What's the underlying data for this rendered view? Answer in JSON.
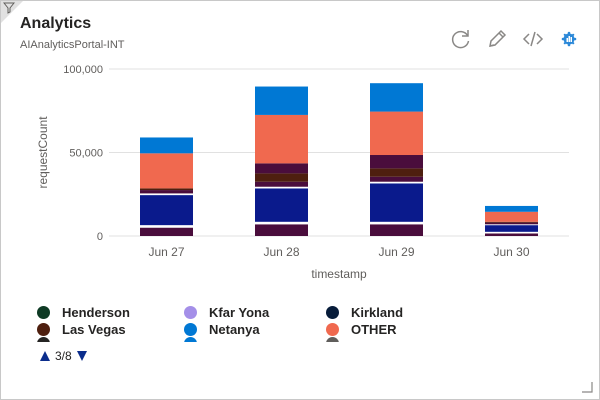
{
  "tile": {
    "title": "Analytics",
    "subtitle": "AIAnalyticsPortal-INT"
  },
  "toolbar": {
    "icons": [
      "refresh-icon",
      "edit-icon",
      "code-icon",
      "analytics-app-icon"
    ]
  },
  "chart_data": {
    "type": "bar",
    "stacked": true,
    "categories": [
      "Jun 27",
      "Jun 28",
      "Jun 29",
      "Jun 30"
    ],
    "xlabel": "timestamp",
    "ylabel": "requestCount",
    "ylim": [
      0,
      100000
    ],
    "yticks": [
      0,
      50000,
      100000
    ],
    "ytick_labels": [
      "0",
      "50,000",
      "100,000"
    ],
    "grid": true,
    "series": [
      {
        "color": "#4a0d3c",
        "values": [
          5000,
          7000,
          7000,
          1500
        ]
      },
      {
        "color": "#ffffff",
        "values": [
          1500,
          1500,
          1500,
          1000
        ]
      },
      {
        "color": "#0a1a8c",
        "values": [
          18000,
          20000,
          23000,
          4000
        ]
      },
      {
        "color": "#ffffff",
        "values": [
          1000,
          1000,
          1000,
          500
        ]
      },
      {
        "color": "#4a0d3c",
        "values": [
          2000,
          3000,
          3000,
          1000
        ]
      },
      {
        "color": "#4e1f0f",
        "values": [
          1000,
          5000,
          5000,
          500
        ]
      },
      {
        "color": "#4a0d3c",
        "values": [
          0,
          6000,
          8000,
          0
        ]
      },
      {
        "color": "#f0694f",
        "values": [
          21000,
          29000,
          26000,
          6000
        ]
      },
      {
        "color": "#0078d4",
        "values": [
          9500,
          17000,
          17000,
          3500
        ]
      }
    ]
  },
  "legend": {
    "items": [
      {
        "label": "Henderson",
        "color": "#0e3a24"
      },
      {
        "label": "Kfar Yona",
        "color": "#a48fe8"
      },
      {
        "label": "Kirkland",
        "color": "#071c3a"
      },
      {
        "label": "Las Vegas",
        "color": "#4e1f0f"
      },
      {
        "label": "Netanya",
        "color": "#0078d4"
      },
      {
        "label": "OTHER",
        "color": "#f0694f"
      }
    ],
    "clipped_colors": [
      "#252423",
      "#0078d4",
      "#605e5c"
    ],
    "pager_text": "3/8"
  },
  "colors": {
    "accent": "#0b2d8c",
    "grid": "#e1e1e1",
    "axis_text": "#605e5c"
  }
}
